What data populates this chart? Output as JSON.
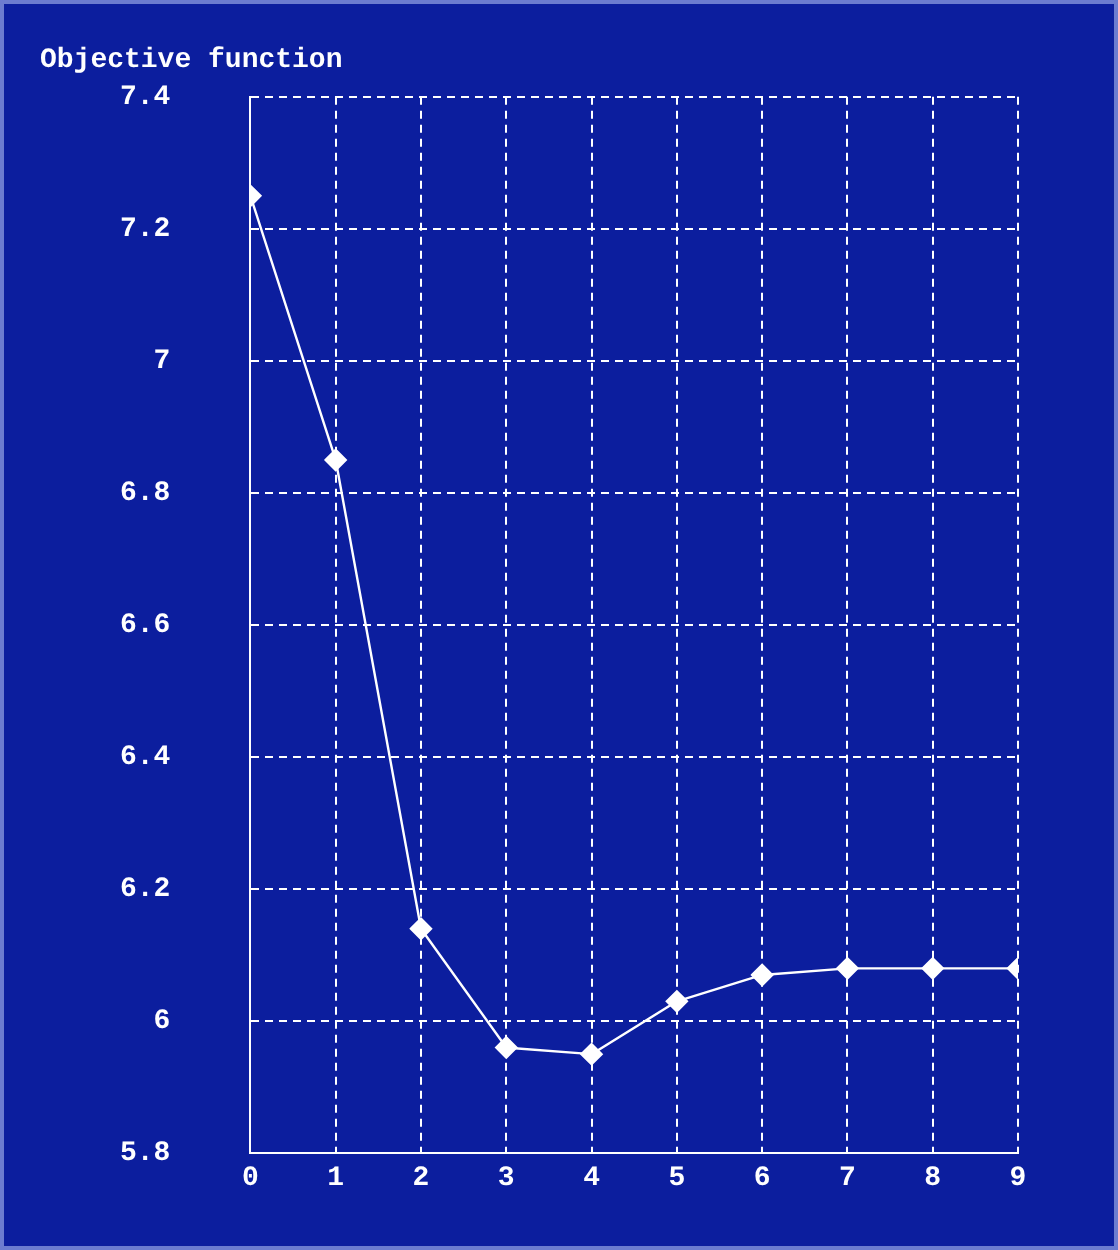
{
  "chart_data": {
    "type": "line",
    "title": "Objective function",
    "x": [
      0,
      1,
      2,
      3,
      4,
      5,
      6,
      7,
      8,
      9
    ],
    "series": [
      {
        "color": "#ffffff",
        "values": [
          7.25,
          6.85,
          6.14,
          5.96,
          5.95,
          6.03,
          6.07,
          6.08,
          6.08,
          6.08
        ]
      }
    ],
    "xlim": [
      0,
      9
    ],
    "xticks": [
      0,
      1,
      2,
      3,
      4,
      5,
      6,
      7,
      8,
      9
    ],
    "ylim": [
      5.8,
      7.4
    ],
    "yticks": [
      5.8,
      6,
      6.2,
      6.4,
      6.6,
      6.8,
      7,
      7.2,
      7.4
    ],
    "grid": true,
    "legend": false,
    "marker": "diamond",
    "line_style": "solid"
  }
}
